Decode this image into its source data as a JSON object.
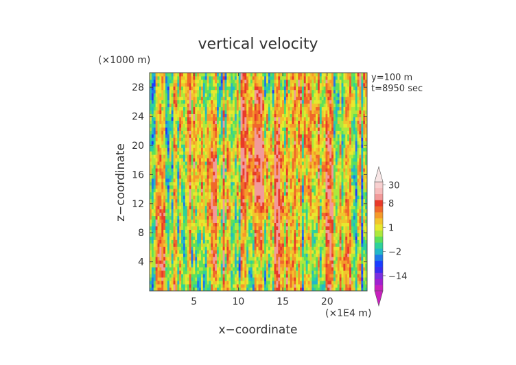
{
  "chart_data": {
    "type": "heatmap",
    "title": "vertical velocity",
    "xlabel": "x−coordinate",
    "ylabel": "z−coordinate",
    "x_unit": "(×1E4 m)",
    "y_unit": "(×1000 m)",
    "annotations": [
      "y=100 m",
      "t=8950 sec"
    ],
    "xlim": [
      0,
      24.5
    ],
    "ylim": [
      0,
      30
    ],
    "x_ticks": [
      5,
      10,
      15,
      20
    ],
    "y_ticks": [
      4,
      8,
      12,
      16,
      20,
      24,
      28
    ],
    "colorbar": {
      "labels": [
        {
          "value": 30,
          "text": "30"
        },
        {
          "value": 8,
          "text": "8"
        },
        {
          "value": 1,
          "text": "1"
        },
        {
          "value": -2,
          "text": "−2"
        },
        {
          "value": -14,
          "text": "−14"
        }
      ],
      "bands": [
        {
          "color": "#c81fbe"
        },
        {
          "color": "#a020d0"
        },
        {
          "color": "#7a2ee0"
        },
        {
          "color": "#3a2cf0"
        },
        {
          "color": "#1a3cff"
        },
        {
          "color": "#1f7ae8"
        },
        {
          "color": "#22b7c8"
        },
        {
          "color": "#2ed29a"
        },
        {
          "color": "#5ee05a"
        },
        {
          "color": "#aee83c"
        },
        {
          "color": "#e8e82e"
        },
        {
          "color": "#f2c42c"
        },
        {
          "color": "#f59a2a"
        },
        {
          "color": "#f0682a"
        },
        {
          "color": "#e83a2a"
        },
        {
          "color": "#f29a9a"
        },
        {
          "color": "#f6bcbc"
        },
        {
          "color": "#f8d0d0"
        }
      ],
      "band_levels": [
        -30,
        -20,
        -14,
        -10,
        -6,
        -4,
        -2,
        -1,
        0,
        0.5,
        1,
        2,
        3,
        5,
        8,
        12,
        20,
        30
      ]
    }
  }
}
